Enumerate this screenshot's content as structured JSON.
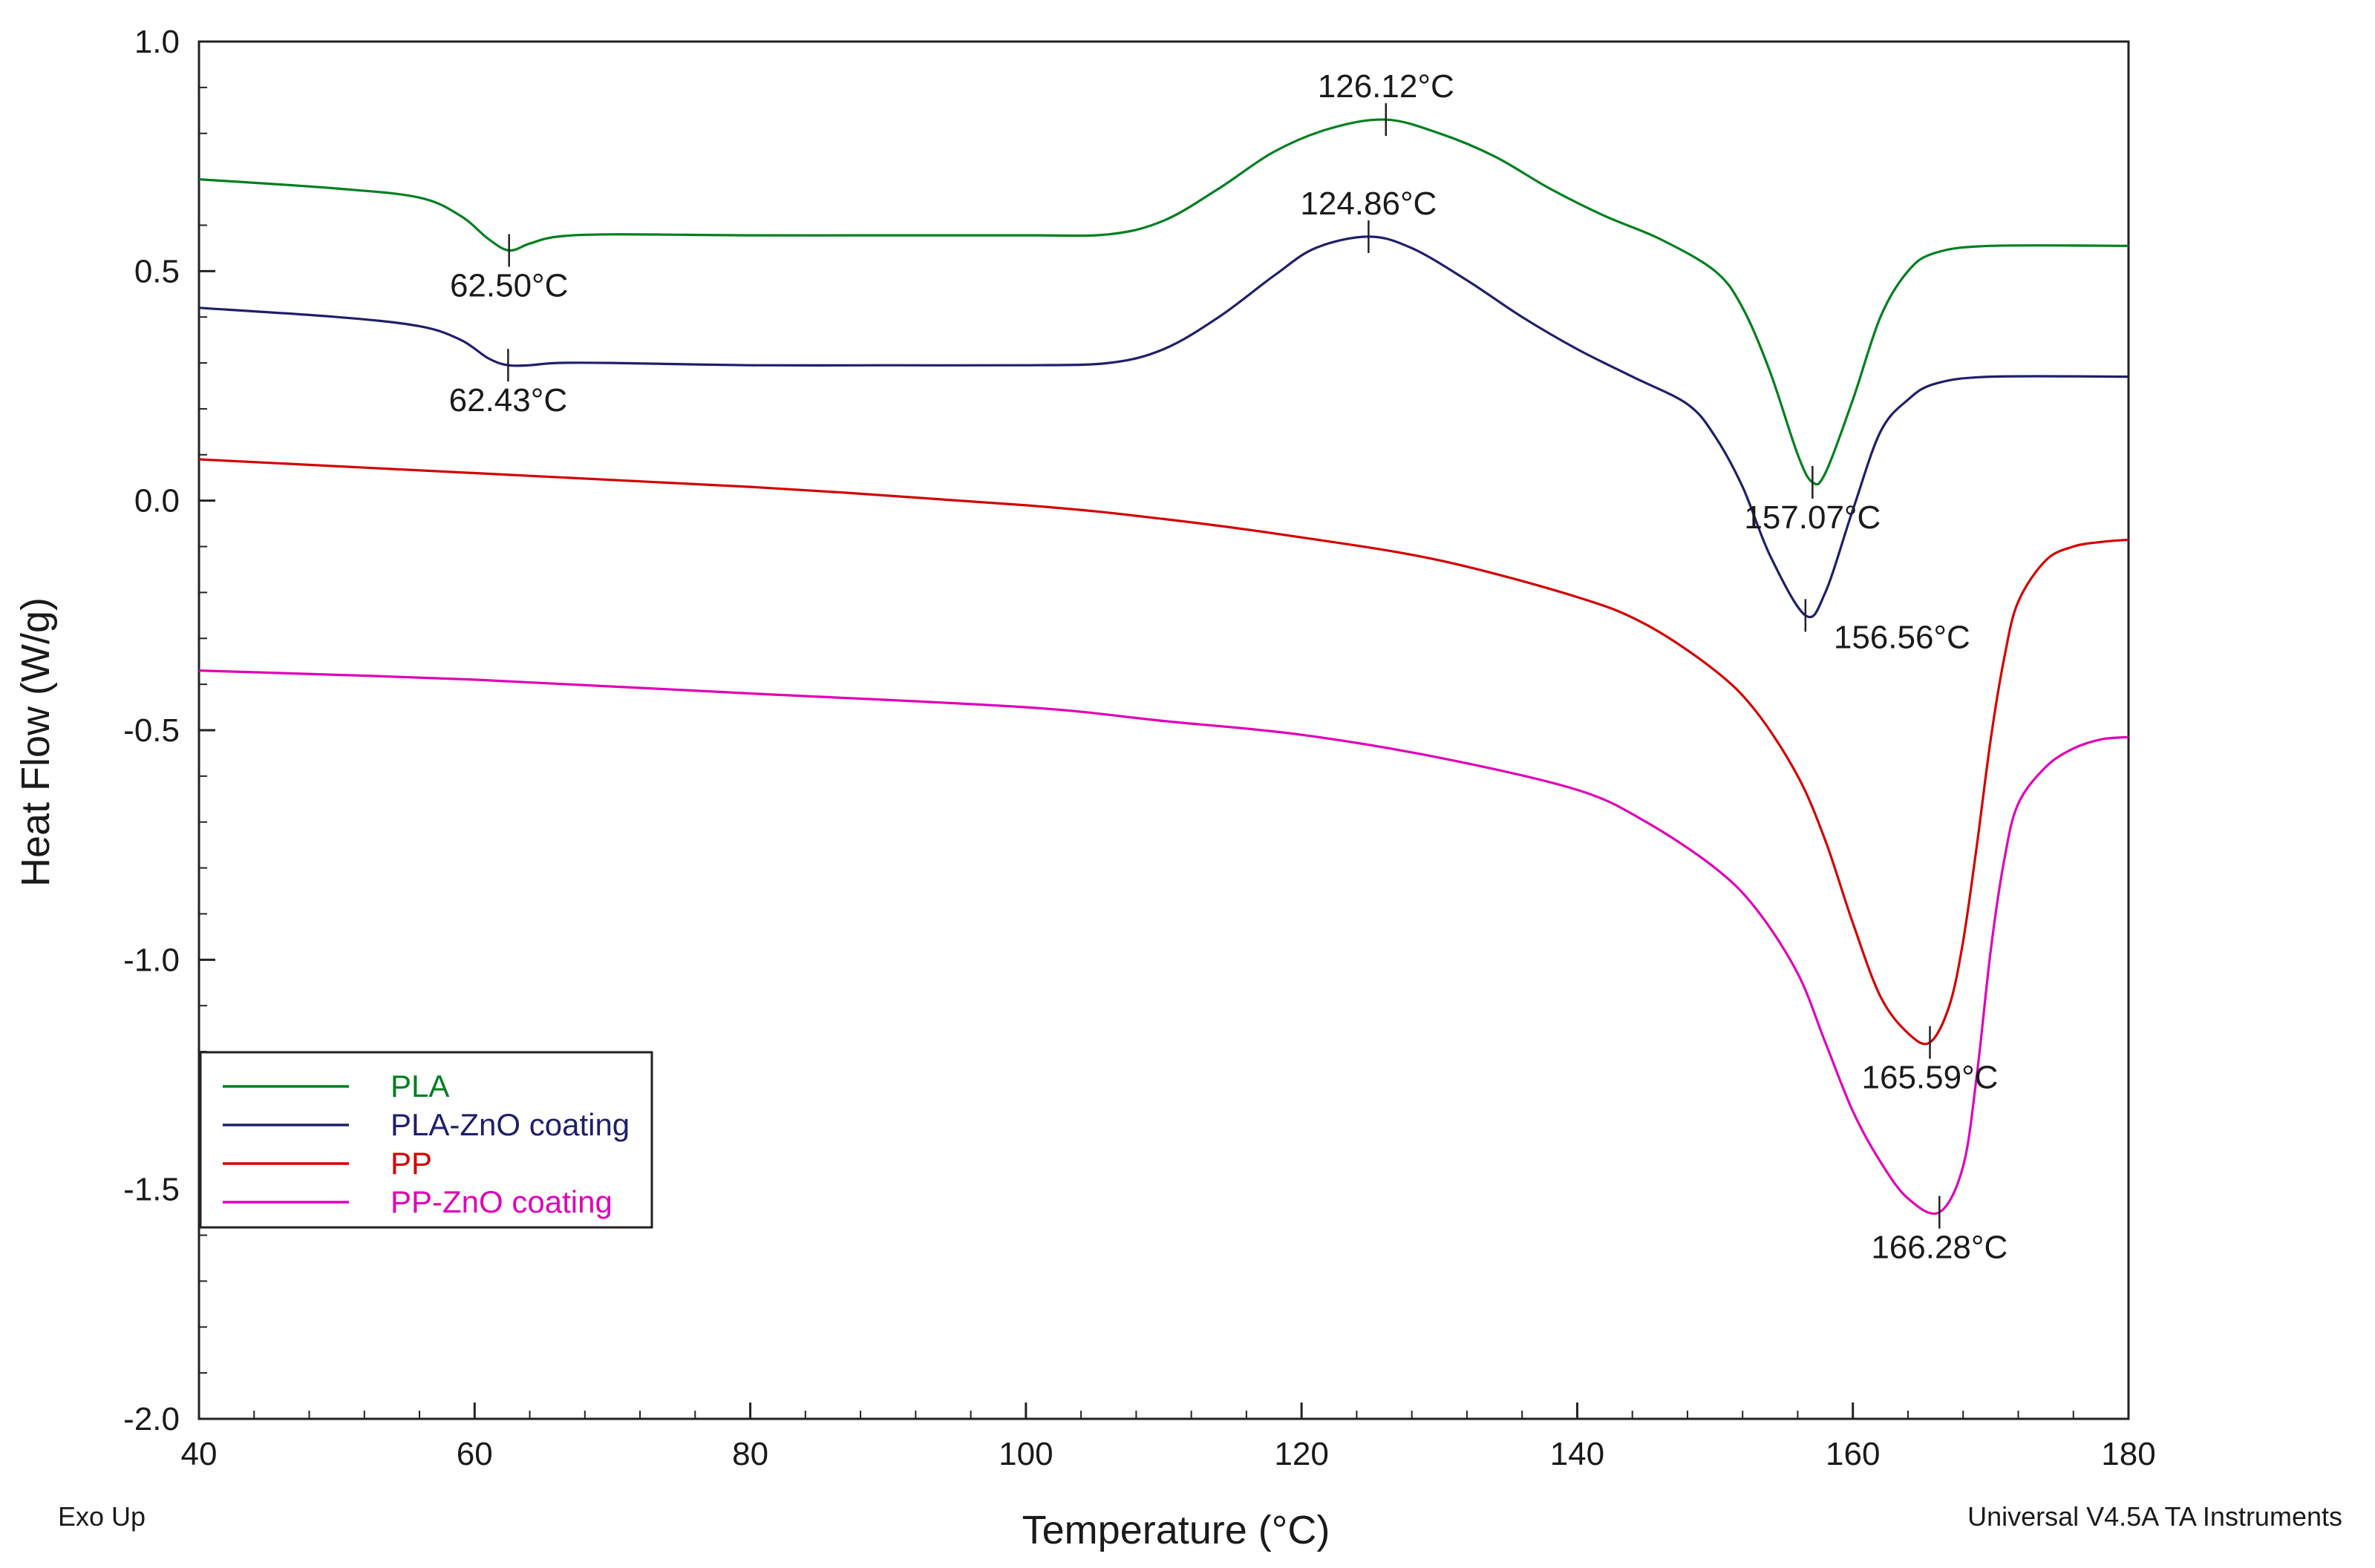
{
  "chart_data": {
    "type": "line",
    "xlabel": "Temperature (°C)",
    "ylabel": "Heat Flow (W/g)",
    "xlim": [
      40,
      180
    ],
    "ylim": [
      -2.0,
      1.0
    ],
    "x_ticks": [
      40,
      60,
      80,
      100,
      120,
      140,
      160,
      180
    ],
    "x_tick_labels": [
      "40",
      "60",
      "80",
      "100",
      "120",
      "140",
      "160",
      "180"
    ],
    "y_ticks": [
      1.0,
      0.5,
      0.0,
      -0.5,
      -1.0,
      -1.5,
      -2.0
    ],
    "y_tick_labels": [
      "1.0",
      "0.5",
      "0.0",
      "-0.5",
      "-1.0",
      "-1.5",
      "-2.0"
    ],
    "grid": false,
    "legend_position": "bottom-left",
    "series": [
      {
        "name": "PLA",
        "color": "#007f1f",
        "x": [
          40,
          50,
          56,
          59,
          61,
          62.5,
          64,
          66,
          70,
          80,
          90,
          100,
          106,
          110,
          114,
          118,
          122,
          126.12,
          130,
          134,
          138,
          142,
          146,
          150,
          152,
          154,
          156,
          157.07,
          158,
          160,
          162,
          164,
          166,
          170,
          180
        ],
        "y": [
          0.7,
          0.68,
          0.66,
          0.62,
          0.57,
          0.545,
          0.56,
          0.575,
          0.58,
          0.578,
          0.578,
          0.578,
          0.58,
          0.61,
          0.68,
          0.76,
          0.81,
          0.83,
          0.8,
          0.75,
          0.68,
          0.62,
          0.57,
          0.5,
          0.42,
          0.28,
          0.1,
          0.04,
          0.06,
          0.22,
          0.4,
          0.5,
          0.54,
          0.555,
          0.555
        ]
      },
      {
        "name": "PLA-ZnO coating",
        "color": "#1f1f6b",
        "x": [
          40,
          50,
          56,
          59,
          61,
          62.43,
          64,
          66,
          70,
          80,
          90,
          100,
          106,
          110,
          114,
          118,
          121,
          124.86,
          128,
          132,
          136,
          140,
          144,
          148,
          150,
          152,
          154,
          156.56,
          158,
          160,
          162,
          164,
          166,
          170,
          180
        ],
        "y": [
          0.42,
          0.4,
          0.38,
          0.35,
          0.31,
          0.295,
          0.295,
          0.3,
          0.3,
          0.295,
          0.295,
          0.295,
          0.3,
          0.33,
          0.4,
          0.49,
          0.55,
          0.575,
          0.55,
          0.48,
          0.4,
          0.33,
          0.27,
          0.21,
          0.14,
          0.03,
          -0.12,
          -0.25,
          -0.2,
          -0.02,
          0.15,
          0.22,
          0.255,
          0.27,
          0.27
        ]
      },
      {
        "name": "PP",
        "color": "#d40000",
        "x": [
          40,
          60,
          80,
          100,
          110,
          120,
          130,
          140,
          145,
          150,
          153,
          156,
          158,
          160,
          162,
          164,
          165.59,
          167,
          168,
          169,
          170,
          171,
          172,
          174,
          176,
          178,
          180
        ],
        "y": [
          0.09,
          0.06,
          0.03,
          -0.01,
          -0.04,
          -0.08,
          -0.13,
          -0.21,
          -0.27,
          -0.37,
          -0.46,
          -0.6,
          -0.74,
          -0.92,
          -1.08,
          -1.16,
          -1.18,
          -1.1,
          -0.96,
          -0.75,
          -0.52,
          -0.34,
          -0.22,
          -0.13,
          -0.1,
          -0.09,
          -0.085
        ]
      },
      {
        "name": "PP-ZnO coating",
        "color": "#e000b8",
        "x": [
          40,
          60,
          80,
          100,
          110,
          120,
          130,
          140,
          145,
          150,
          153,
          156,
          158,
          160,
          162,
          164,
          166.28,
          168,
          169,
          170,
          171,
          172,
          174,
          176,
          178,
          180
        ],
        "y": [
          -0.37,
          -0.39,
          -0.42,
          -0.45,
          -0.48,
          -0.51,
          -0.56,
          -0.63,
          -0.7,
          -0.8,
          -0.89,
          -1.03,
          -1.18,
          -1.33,
          -1.44,
          -1.52,
          -1.55,
          -1.45,
          -1.25,
          -0.98,
          -0.78,
          -0.66,
          -0.58,
          -0.54,
          -0.52,
          -0.515
        ]
      }
    ],
    "annotations": [
      {
        "label": "62.50°C",
        "x": 62.5,
        "y": 0.545,
        "series": "PLA",
        "text_side": "below"
      },
      {
        "label": "126.12°C",
        "x": 126.12,
        "y": 0.83,
        "series": "PLA",
        "text_side": "above"
      },
      {
        "label": "157.07°C",
        "x": 157.07,
        "y": 0.04,
        "series": "PLA",
        "text_side": "below"
      },
      {
        "label": "62.43°C",
        "x": 62.43,
        "y": 0.295,
        "series": "PLA-ZnO coating",
        "text_side": "below"
      },
      {
        "label": "124.86°C",
        "x": 124.86,
        "y": 0.575,
        "series": "PLA-ZnO coating",
        "text_side": "above"
      },
      {
        "label": "156.56°C",
        "x": 156.56,
        "y": -0.25,
        "series": "PLA-ZnO coating",
        "text_side": "below-right"
      },
      {
        "label": "165.59°C",
        "x": 165.59,
        "y": -1.18,
        "series": "PP",
        "text_side": "below"
      },
      {
        "label": "166.28°C",
        "x": 166.28,
        "y": -1.55,
        "series": "PP-ZnO coating",
        "text_side": "below"
      }
    ],
    "footer_left": "Exo Up",
    "footer_right": "Universal V4.5A TA Instruments"
  }
}
